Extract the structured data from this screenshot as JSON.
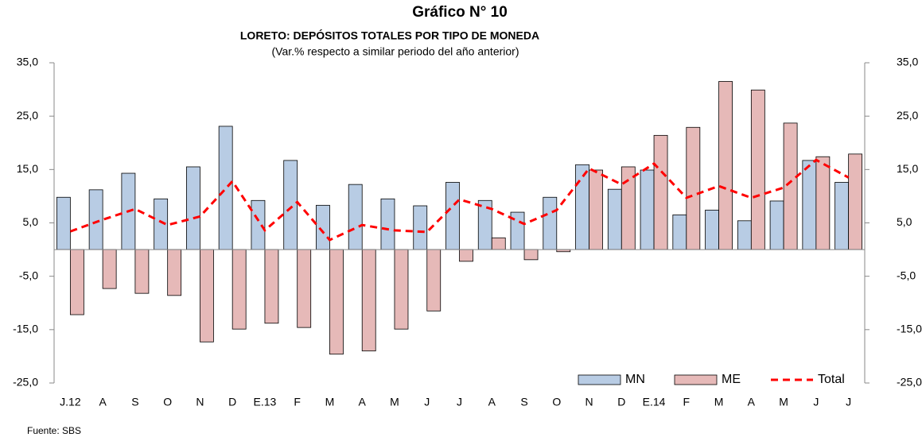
{
  "chart_data": {
    "type": "bar",
    "title": "Gráfico N° 10",
    "subtitle": "LORETO: DEPÓSITOS TOTALES POR TIPO DE MONEDA",
    "note": "(Var.% respecto a similar periodo del año anterior)",
    "source": "Fuente: SBS",
    "categories": [
      "J.12",
      "A",
      "S",
      "O",
      "N",
      "D",
      "E.13",
      "F",
      "M",
      "A",
      "M",
      "J",
      "J",
      "A",
      "S",
      "O",
      "N",
      "D",
      "E.14",
      "F",
      "M",
      "A",
      "M",
      "J",
      "J"
    ],
    "series": [
      {
        "name": "MN",
        "type": "bar",
        "color": "#b8cce4",
        "values": [
          9.8,
          11.2,
          14.3,
          9.5,
          15.5,
          23.1,
          9.2,
          16.7,
          8.3,
          12.2,
          9.5,
          8.2,
          12.6,
          9.2,
          7.0,
          9.8,
          15.9,
          11.3,
          14.9,
          6.5,
          7.4,
          5.4,
          9.1,
          16.7,
          12.6
        ]
      },
      {
        "name": "ME",
        "type": "bar",
        "color": "#e6b9b8",
        "values": [
          -12.2,
          -7.3,
          -8.2,
          -8.6,
          -17.3,
          -14.9,
          -13.8,
          -14.6,
          -19.6,
          -19.0,
          -14.9,
          -11.5,
          -2.2,
          2.2,
          -1.9,
          -0.4,
          14.9,
          15.5,
          21.4,
          22.9,
          31.5,
          29.9,
          23.7,
          17.4,
          17.9
        ]
      },
      {
        "name": "Total",
        "type": "line",
        "color": "#ff0000",
        "values": [
          3.4,
          5.6,
          7.6,
          4.6,
          6.2,
          12.8,
          3.6,
          8.9,
          1.8,
          4.6,
          3.6,
          3.3,
          9.4,
          7.6,
          4.8,
          7.4,
          15.2,
          12.2,
          16.1,
          9.7,
          11.9,
          9.7,
          11.6,
          16.8,
          13.5
        ]
      }
    ],
    "ylim": [
      -25,
      35
    ],
    "yticks": [
      {
        "value": 35,
        "label": "35,0"
      },
      {
        "value": 25,
        "label": "25,0"
      },
      {
        "value": 15,
        "label": "15,0"
      },
      {
        "value": 5,
        "label": "5,0"
      },
      {
        "value": -5,
        "label": "-5,0"
      },
      {
        "value": -15,
        "label": "-15,0"
      },
      {
        "value": -25,
        "label": "-25,0"
      }
    ],
    "y2lim": [
      -25,
      35
    ],
    "y2ticks": [
      {
        "value": 35,
        "label": "35,0"
      },
      {
        "value": 25,
        "label": "25,0"
      },
      {
        "value": 15,
        "label": "15,0"
      },
      {
        "value": 5,
        "label": "5,0"
      },
      {
        "value": -5,
        "label": "-5,0"
      },
      {
        "value": -15,
        "label": "-15,0"
      },
      {
        "value": -25,
        "label": "-25,0"
      }
    ],
    "grid": false,
    "legend": "lower right"
  }
}
